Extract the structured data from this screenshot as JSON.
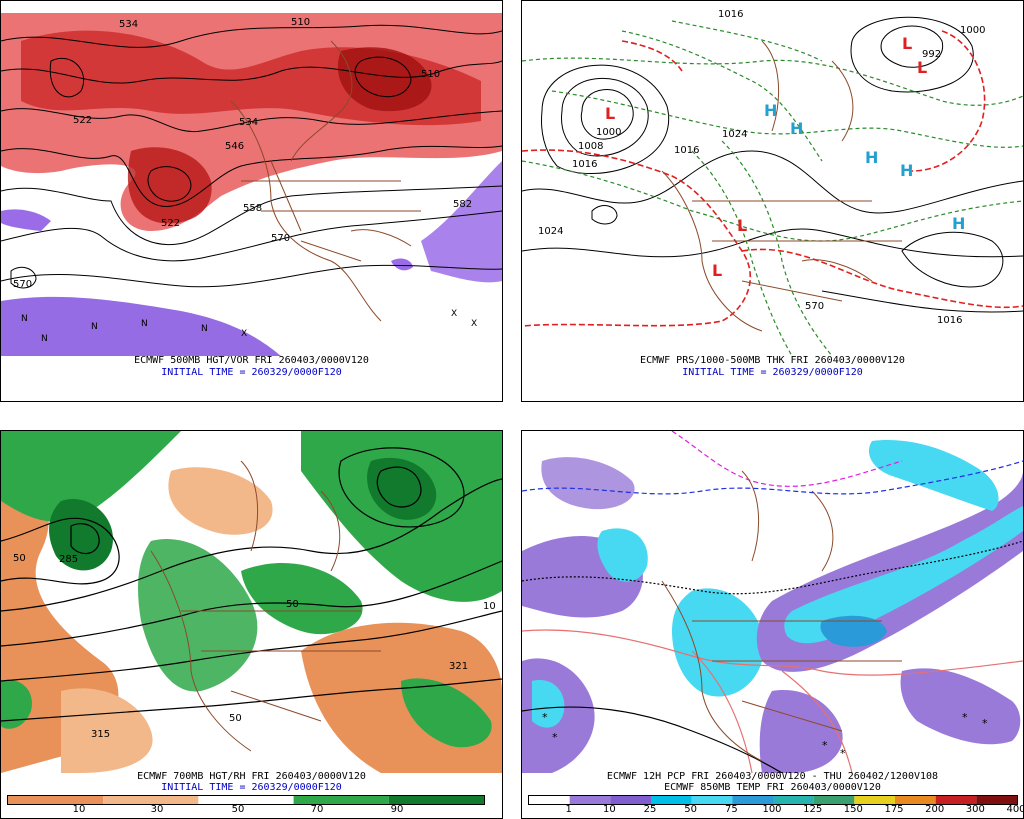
{
  "panels": [
    {
      "id": "p500",
      "caption_line1": "ECMWF 500MB HGT/VOR FRI 260403/0000V120",
      "caption_line2": "INITIAL TIME = 260329/0000F120",
      "labels": [
        "534",
        "510",
        "522",
        "534",
        "546",
        "558",
        "570",
        "582",
        "570",
        "522",
        "510"
      ]
    },
    {
      "id": "psfc",
      "caption_line1": "ECMWF PRS/1000-500MB THK FRI 260403/0000V120",
      "caption_line2": "INITIAL TIME = 260329/0000F120",
      "labels": [
        "1016",
        "1008",
        "1000",
        "1024",
        "1016",
        "992",
        "1000",
        "1016",
        "570",
        "1016",
        "1024"
      ]
    },
    {
      "id": "p700",
      "caption_line1": "ECMWF 700MB HGT/RH FRI 260403/0000V120",
      "caption_line2": "INITIAL TIME = 260329/0000F120",
      "labels": [
        "285",
        "315",
        "321",
        "50",
        "50",
        "10",
        "50"
      ],
      "colorbar_labels": [
        "10",
        "30",
        "50",
        "70",
        "90"
      ],
      "colorbar_colors": [
        "#e8925a",
        "#f3b88a",
        "#ffffff",
        "#2fa84a",
        "#117a2c"
      ]
    },
    {
      "id": "ppcp",
      "caption_line1": "ECMWF 12H PCP FRI 260403/0000V120 - THU 260402/1200V108",
      "caption_line2": "ECMWF 850MB TEMP FRI 260403/0000V120",
      "colorbar_labels": [
        "1",
        "10",
        "25",
        "50",
        "75",
        "100",
        "125",
        "150",
        "175",
        "200",
        "300",
        "400"
      ],
      "colorbar_colors": [
        "#ffffff",
        "#9a7ad8",
        "#7f5fd0",
        "#00bfe8",
        "#47d8f2",
        "#2a9ad8",
        "#27b4b0",
        "#3aa070",
        "#e8d020",
        "#e88a20",
        "#c82020",
        "#801010"
      ]
    }
  ]
}
